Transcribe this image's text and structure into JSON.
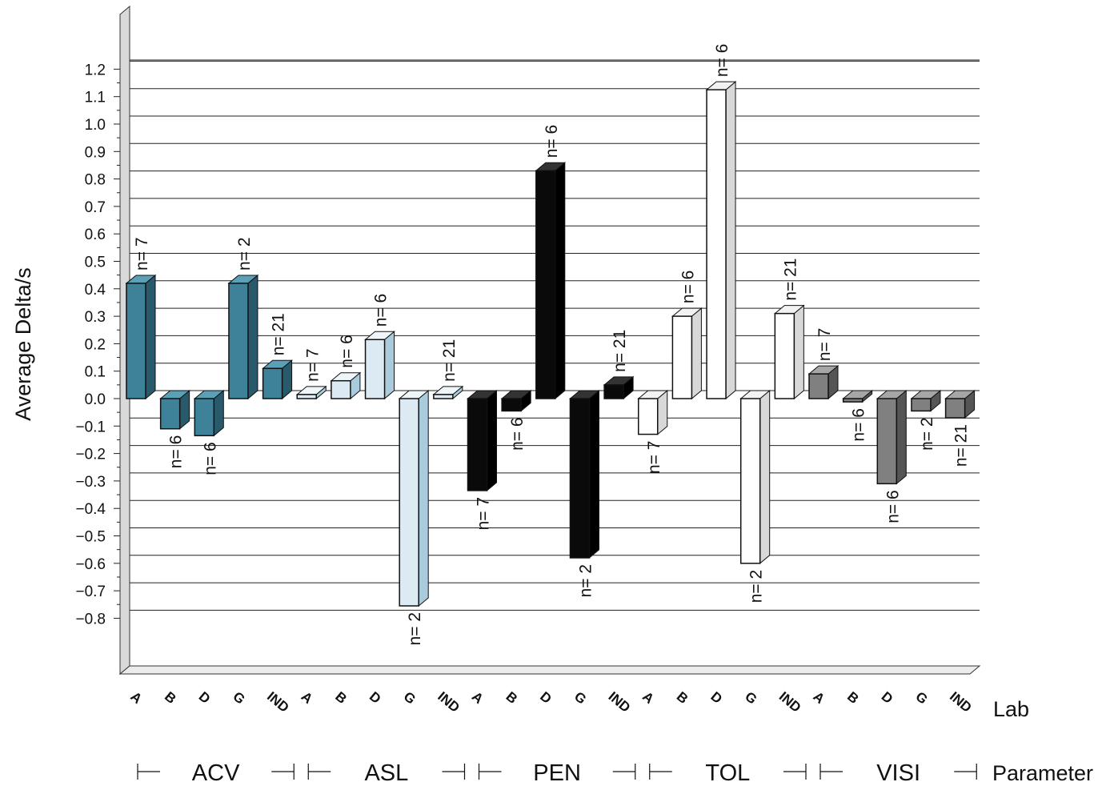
{
  "chart_data": {
    "type": "bar",
    "ylabel": "Average Delta/s",
    "xlabel": "Lab",
    "group_axis_label": "Parameter",
    "ylim": [
      -0.8,
      1.2
    ],
    "yticks": [
      "1.2",
      "1.1",
      "1.0",
      "0.9",
      "0.8",
      "0.7",
      "0.6",
      "0.5",
      "0.4",
      "0.3",
      "0.2",
      "0.1",
      "0.0",
      "−0.1",
      "−0.2",
      "−0.3",
      "−0.4",
      "−0.5",
      "−0.6",
      "−0.7",
      "−0.8"
    ],
    "grid": true,
    "three_d": true,
    "groups": [
      {
        "name": "ACV",
        "color": "#3d8299",
        "side_color": "#285a6b",
        "top_color": "#5aa0b6",
        "bars": [
          {
            "lab": "A",
            "value": 0.42,
            "n": "n= 7"
          },
          {
            "lab": "B",
            "value": -0.11,
            "n": "n= 6"
          },
          {
            "lab": "D",
            "value": -0.135,
            "n": "n= 6"
          },
          {
            "lab": "G",
            "value": 0.42,
            "n": "n= 2"
          },
          {
            "lab": "IND",
            "value": 0.11,
            "n": "n= 21"
          }
        ]
      },
      {
        "name": "ASL",
        "color": "#dcebf3",
        "side_color": "#a9cbdc",
        "top_color": "#eef6fa",
        "bars": [
          {
            "lab": "A",
            "value": 0.015,
            "n": "n= 7"
          },
          {
            "lab": "B",
            "value": 0.065,
            "n": "n= 6"
          },
          {
            "lab": "D",
            "value": 0.215,
            "n": "n= 6"
          },
          {
            "lab": "G",
            "value": -0.755,
            "n": "n= 2"
          },
          {
            "lab": "IND",
            "value": 0.015,
            "n": "n= 21"
          }
        ]
      },
      {
        "name": "PEN",
        "color": "#0a0a0a",
        "side_color": "#000000",
        "top_color": "#333333",
        "bars": [
          {
            "lab": "A",
            "value": -0.335,
            "n": "n= 7"
          },
          {
            "lab": "B",
            "value": -0.045,
            "n": "n= 6"
          },
          {
            "lab": "D",
            "value": 0.83,
            "n": "n= 6"
          },
          {
            "lab": "G",
            "value": -0.58,
            "n": "n= 2"
          },
          {
            "lab": "IND",
            "value": 0.05,
            "n": "n= 21"
          }
        ]
      },
      {
        "name": "TOL",
        "color": "#ffffff",
        "side_color": "#d8d8d8",
        "top_color": "#f2f2f2",
        "bars": [
          {
            "lab": "A",
            "value": -0.13,
            "n": "n= 7"
          },
          {
            "lab": "B",
            "value": 0.3,
            "n": "n= 6"
          },
          {
            "lab": "D",
            "value": 1.125,
            "n": "n= 6"
          },
          {
            "lab": "G",
            "value": -0.6,
            "n": "n= 2"
          },
          {
            "lab": "IND",
            "value": 0.31,
            "n": "n= 21"
          }
        ]
      },
      {
        "name": "VISI",
        "color": "#808080",
        "side_color": "#555555",
        "top_color": "#a6a6a6",
        "bars": [
          {
            "lab": "A",
            "value": 0.09,
            "n": "n= 7"
          },
          {
            "lab": "B",
            "value": -0.012,
            "n": "n= 6"
          },
          {
            "lab": "D",
            "value": -0.31,
            "n": "n= 6"
          },
          {
            "lab": "G",
            "value": -0.045,
            "n": "n= 2"
          },
          {
            "lab": "IND",
            "value": -0.07,
            "n": "n= 21"
          }
        ]
      }
    ]
  }
}
